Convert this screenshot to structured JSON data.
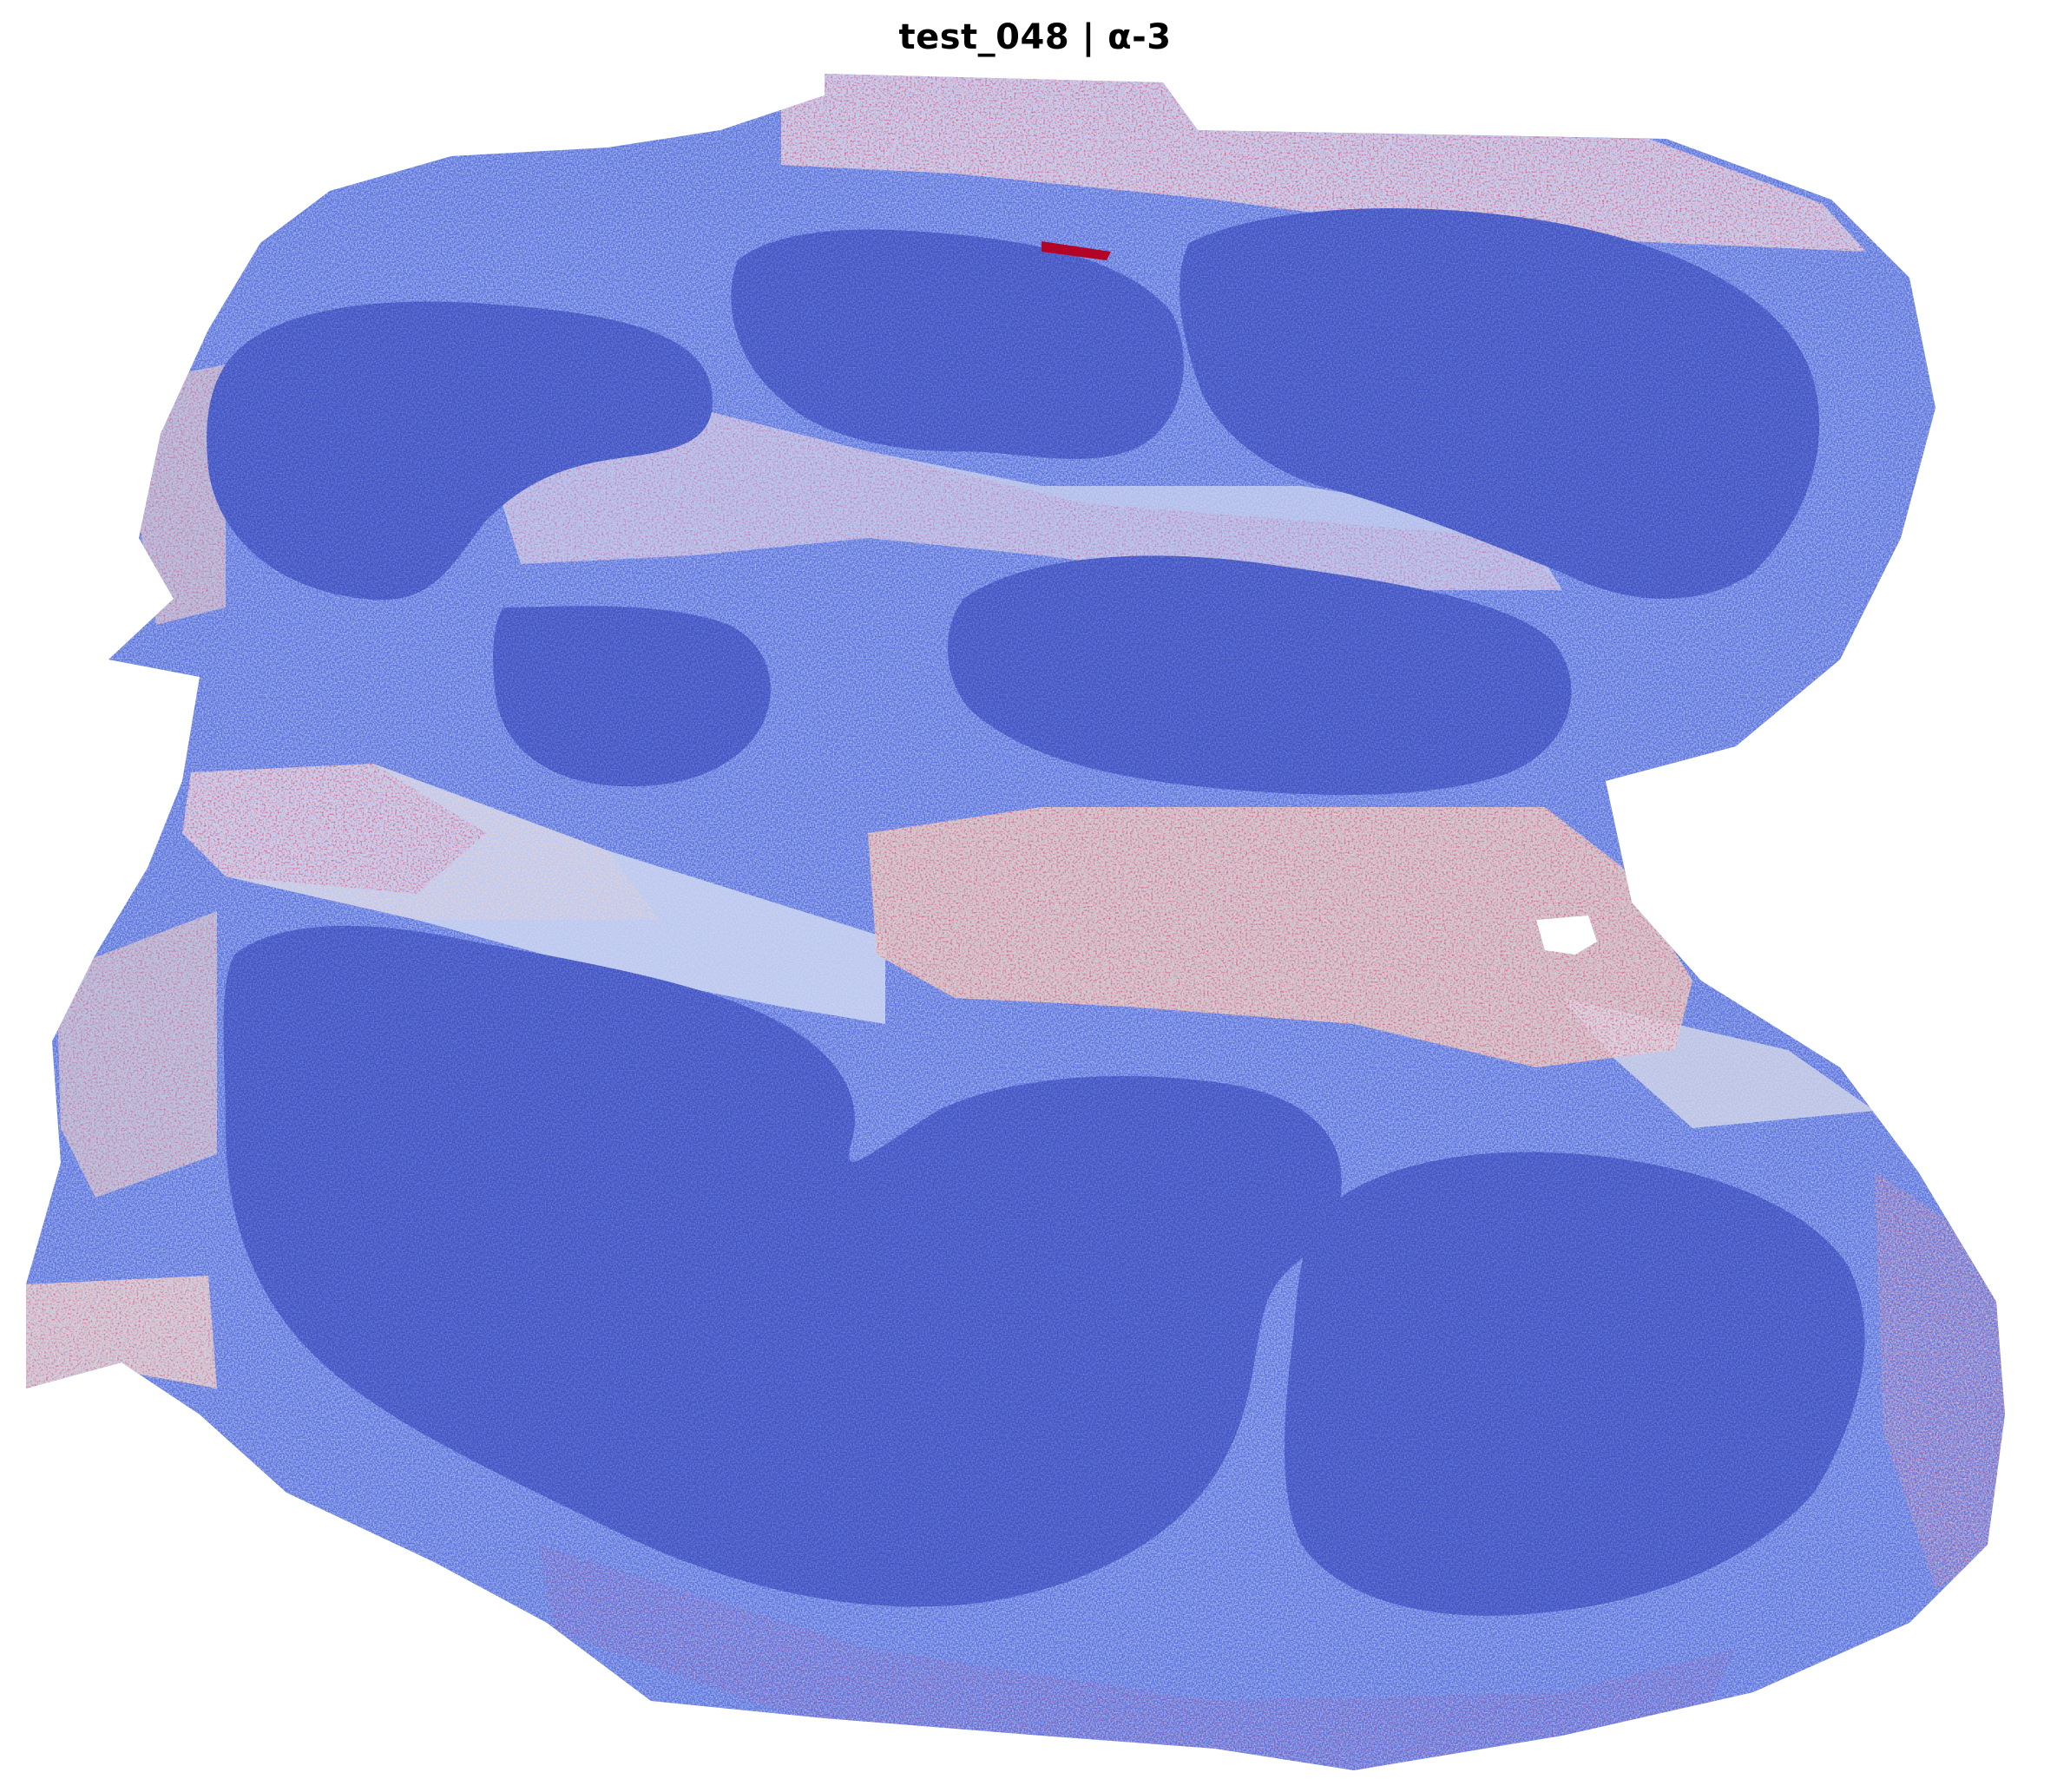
{
  "figure": {
    "title": "test_048 | α-3"
  },
  "colormap": {
    "name": "coolwarm",
    "low": "#3b4cc0",
    "mid": "#dddddd",
    "high": "#b40426"
  },
  "tissue": {
    "description_colors": {
      "background": "#ffffff",
      "dense_region": "#4054c4",
      "tissue_base": "#5b73dd"
    }
  }
}
